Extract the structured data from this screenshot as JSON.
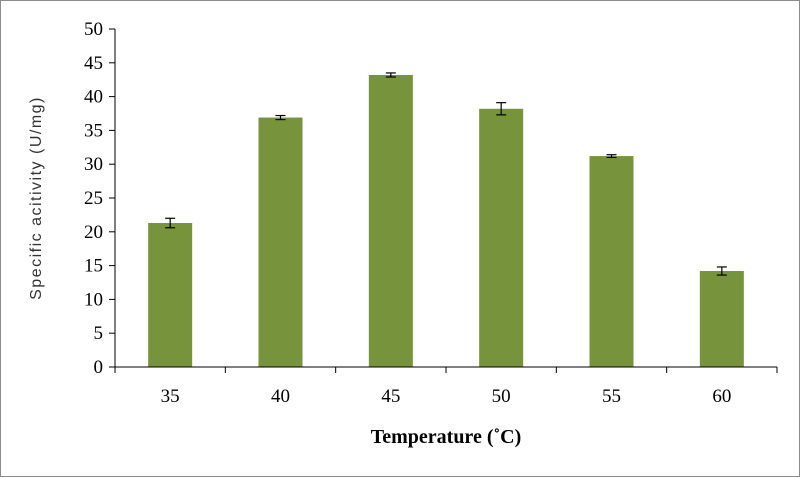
{
  "chart_data": {
    "type": "bar",
    "categories": [
      "35",
      "40",
      "45",
      "50",
      "55",
      "60"
    ],
    "values": [
      21.3,
      36.9,
      43.2,
      38.2,
      31.2,
      14.2
    ],
    "error": [
      0.7,
      0.3,
      0.3,
      0.9,
      0.2,
      0.6
    ],
    "xlabel": "Temperature (˚C)",
    "ylabel": "Specific acitivity (U/mg)",
    "ylim": [
      0,
      50
    ],
    "yticks": [
      "0",
      "5",
      "10",
      "15",
      "20",
      "25",
      "30",
      "35",
      "40",
      "45",
      "50"
    ],
    "bar_color": "#77933c",
    "grid": false,
    "legend": "none"
  }
}
